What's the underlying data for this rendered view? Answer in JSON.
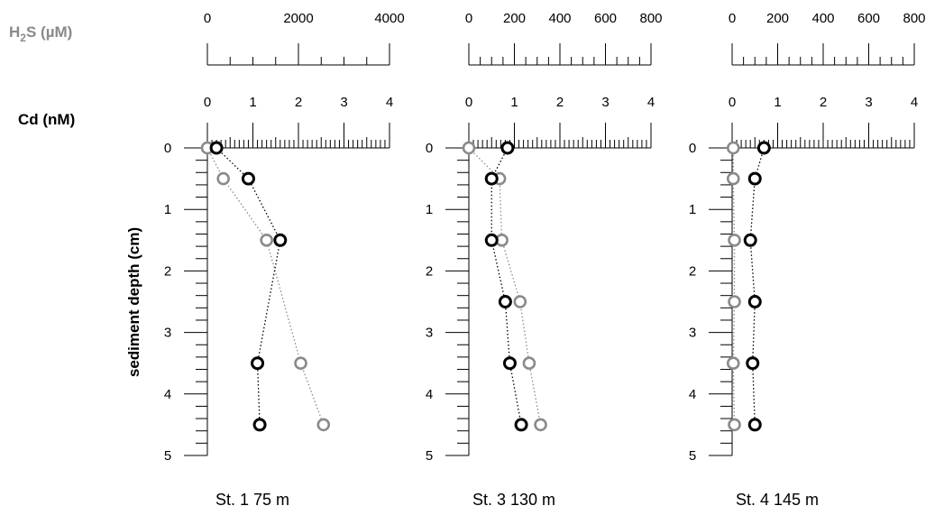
{
  "labels": {
    "h2s_prefix": "H",
    "h2s_sub": "2",
    "h2s_suffix": "S (µM)",
    "cd": "Cd (nM)",
    "depth": "sediment depth (cm)"
  },
  "colors": {
    "h2s": "#8a8a8a",
    "cd": "#000000"
  },
  "chart_data": [
    {
      "type": "scatter",
      "title": "St. 1  75 m",
      "ylabel": "sediment depth (cm)",
      "ylim": [
        0,
        5
      ],
      "y_ticks": [
        "0",
        "1",
        "2",
        "3",
        "4",
        "5"
      ],
      "cd_axis": {
        "label": "Cd (nM)",
        "range": [
          0,
          4
        ],
        "ticks": [
          "0",
          "1",
          "2",
          "3",
          "4"
        ]
      },
      "h2s_axis": {
        "label": "H2S (µM)",
        "range": [
          0,
          4000
        ],
        "ticks": [
          "0",
          "2000",
          "4000"
        ]
      },
      "series": [
        {
          "name": "Cd (nM)",
          "color": "#000000",
          "axis": "cd",
          "points": [
            [
              0.2,
              0
            ],
            [
              0.9,
              0.5
            ],
            [
              1.6,
              1.5
            ],
            [
              1.1,
              3.5
            ],
            [
              1.15,
              4.5
            ]
          ]
        },
        {
          "name": "H2S (µM)",
          "color": "#8a8a8a",
          "axis": "h2s",
          "points": [
            [
              0,
              0
            ],
            [
              350,
              0.5
            ],
            [
              1300,
              1.5
            ],
            [
              2050,
              3.5
            ],
            [
              2550,
              4.5
            ]
          ]
        }
      ]
    },
    {
      "type": "scatter",
      "title": "St. 3  130 m",
      "ylabel": "sediment depth (cm)",
      "ylim": [
        0,
        5
      ],
      "y_ticks": [
        "0",
        "1",
        "2",
        "3",
        "4",
        "5"
      ],
      "cd_axis": {
        "label": "Cd (nM)",
        "range": [
          0,
          4
        ],
        "ticks": [
          "0",
          "1",
          "2",
          "3",
          "4"
        ]
      },
      "h2s_axis": {
        "label": "H2S (µM)",
        "range": [
          0,
          800
        ],
        "ticks": [
          "0",
          "200",
          "400",
          "600",
          "800"
        ]
      },
      "series": [
        {
          "name": "Cd (nM)",
          "color": "#000000",
          "axis": "cd",
          "points": [
            [
              0.85,
              0
            ],
            [
              0.5,
              0.5
            ],
            [
              0.5,
              1.5
            ],
            [
              0.8,
              2.5
            ],
            [
              0.9,
              3.5
            ],
            [
              1.15,
              4.5
            ]
          ]
        },
        {
          "name": "H2S (µM)",
          "color": "#8a8a8a",
          "axis": "h2s",
          "points": [
            [
              0,
              0
            ],
            [
              135,
              0.5
            ],
            [
              145,
              1.5
            ],
            [
              225,
              2.5
            ],
            [
              265,
              3.5
            ],
            [
              315,
              4.5
            ]
          ]
        }
      ]
    },
    {
      "type": "scatter",
      "title": "St. 4  145 m",
      "ylabel": "sediment depth (cm)",
      "ylim": [
        0,
        5
      ],
      "y_ticks": [
        "0",
        "1",
        "2",
        "3",
        "4",
        "5"
      ],
      "cd_axis": {
        "label": "Cd (nM)",
        "range": [
          0,
          4
        ],
        "ticks": [
          "0",
          "1",
          "2",
          "3",
          "4"
        ]
      },
      "h2s_axis": {
        "label": "H2S (µM)",
        "range": [
          0,
          800
        ],
        "ticks": [
          "0",
          "200",
          "400",
          "600",
          "800"
        ]
      },
      "series": [
        {
          "name": "Cd (nM)",
          "color": "#000000",
          "axis": "cd",
          "points": [
            [
              0.7,
              0
            ],
            [
              0.5,
              0.5
            ],
            [
              0.4,
              1.5
            ],
            [
              0.5,
              2.5
            ],
            [
              0.45,
              3.5
            ],
            [
              0.5,
              4.5
            ]
          ]
        },
        {
          "name": "H2S (µM)",
          "color": "#8a8a8a",
          "axis": "h2s",
          "points": [
            [
              5,
              0
            ],
            [
              5,
              0.5
            ],
            [
              10,
              1.5
            ],
            [
              10,
              2.5
            ],
            [
              5,
              3.5
            ],
            [
              10,
              4.5
            ]
          ]
        }
      ]
    }
  ]
}
